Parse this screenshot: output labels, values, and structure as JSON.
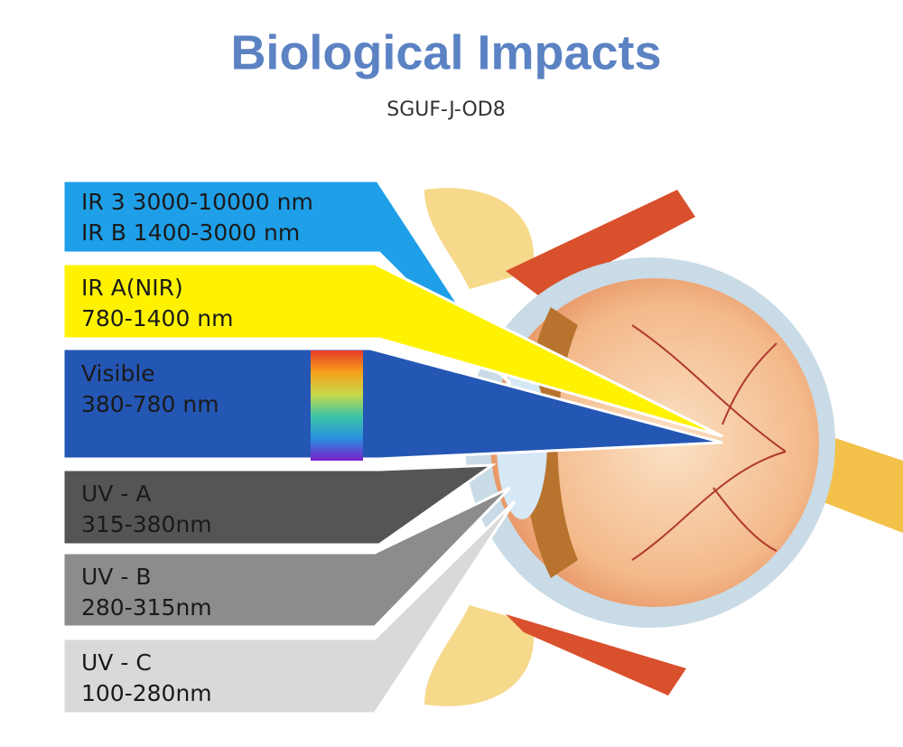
{
  "header": {
    "title": "Biological Impacts",
    "subtitle": "SGUF-J-OD8"
  },
  "bands": [
    {
      "line1": "IR 3 3000-10000 nm",
      "line2": "IR B 1400-3000 nm"
    },
    {
      "line1": "IR A(NIR)",
      "line2": "780-1400 nm"
    },
    {
      "line1": "Visible",
      "line2": "380-780 nm"
    },
    {
      "line1": "UV - A",
      "line2": "315-380nm"
    },
    {
      "line1": "UV - B",
      "line2": "280-315nm"
    },
    {
      "line1": "UV - C",
      "line2": "100-280nm"
    }
  ]
}
